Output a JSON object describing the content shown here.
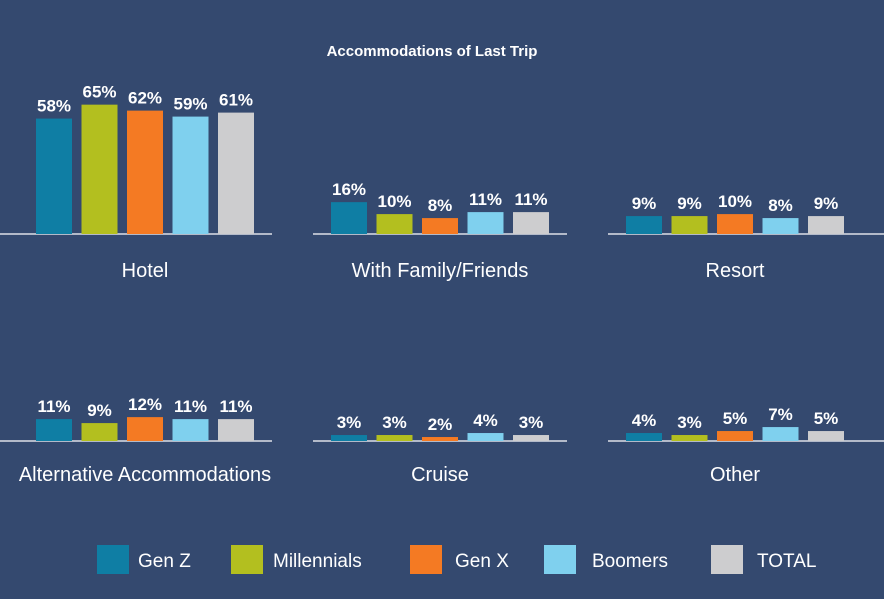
{
  "chart_data": {
    "type": "bar",
    "title": "Accommodations of Last Trip",
    "xlabel": "",
    "ylabel": "",
    "ylim": [
      0,
      100
    ],
    "grid": false,
    "legend_position": "bottom",
    "categories": [
      "Hotel",
      "With Family/Friends",
      "Resort",
      "Alternative Accommodations",
      "Cruise",
      "Other"
    ],
    "series": [
      {
        "name": "Gen Z",
        "color": "#0f7ea4",
        "values": [
          58,
          16,
          9,
          11,
          3,
          4
        ]
      },
      {
        "name": "Millennials",
        "color": "#b3bf1f",
        "values": [
          65,
          10,
          9,
          9,
          3,
          3
        ]
      },
      {
        "name": "Gen X",
        "color": "#f47a23",
        "values": [
          62,
          8,
          10,
          12,
          2,
          5
        ]
      },
      {
        "name": "Boomers",
        "color": "#7fd0ee",
        "values": [
          59,
          11,
          8,
          11,
          4,
          7
        ]
      },
      {
        "name": "TOTAL",
        "color": "#cdcdcf",
        "values": [
          61,
          11,
          9,
          11,
          3,
          5
        ]
      }
    ],
    "value_suffix": "%"
  },
  "colors": {
    "background": "#34496f",
    "text": "#ffffff",
    "baseline": "#ffffff"
  }
}
